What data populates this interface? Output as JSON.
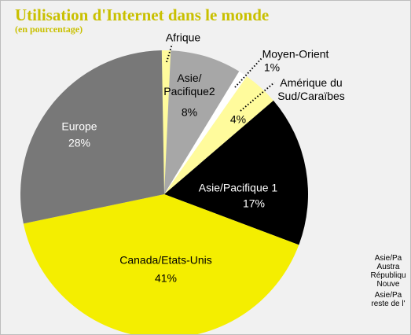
{
  "chart_data": {
    "type": "pie",
    "title": "Utilisation d'Internet dans le monde",
    "subtitle": "(en pourcentage)",
    "categories": [
      "Afrique",
      "Asie/\nPacifique2",
      "Moyen-Orient",
      "Amérique du\nSud/Caraïbes",
      "Asie/Pacifique 1",
      "Canada/Etats-Unis",
      "Europe"
    ],
    "values": [
      1,
      8,
      1,
      4,
      17,
      41,
      28
    ],
    "value_labels": [
      null,
      "8%",
      "1%",
      "4%",
      "17%",
      "41%",
      "28%"
    ],
    "colors": [
      "#fffb9c",
      "#a7a7a7",
      "#ffffff",
      "#fffb9c",
      "#000000",
      "#f4ee00",
      "#787878"
    ],
    "side_text": [
      "Asie/Pa",
      "Austra",
      "Républiqu",
      "Nouve",
      "Asie/Pa",
      "reste de l'"
    ]
  }
}
